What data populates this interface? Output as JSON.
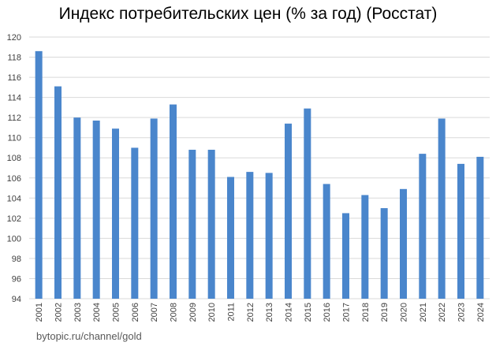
{
  "chart_data": {
    "type": "bar",
    "title": "Индекс потребительских цен (% за год) (Росстат)",
    "xlabel": "",
    "ylabel": "",
    "categories": [
      "2001",
      "2002",
      "2003",
      "2004",
      "2005",
      "2006",
      "2007",
      "2008",
      "2009",
      "2010",
      "2011",
      "2012",
      "2013",
      "2014",
      "2015",
      "2016",
      "2017",
      "2018",
      "2019",
      "2020",
      "2021",
      "2022",
      "2023",
      "2024"
    ],
    "series": [
      {
        "values": [
          118.6,
          115.1,
          112.0,
          111.7,
          110.9,
          109.0,
          111.9,
          113.3,
          108.8,
          108.8,
          106.1,
          106.6,
          106.5,
          111.4,
          112.9,
          105.4,
          102.5,
          104.3,
          103.0,
          104.9,
          108.4,
          111.9,
          107.4,
          108.1
        ]
      }
    ],
    "yticks": [
      94,
      96,
      98,
      100,
      102,
      104,
      106,
      108,
      110,
      112,
      114,
      116,
      118,
      120
    ],
    "ylim": [
      94,
      120
    ],
    "grid": true,
    "legend": "none",
    "bar_color": "#4a86cc",
    "grid_color": "#d9d9d9"
  },
  "watermark": "bytopic.ru/channel/gold"
}
